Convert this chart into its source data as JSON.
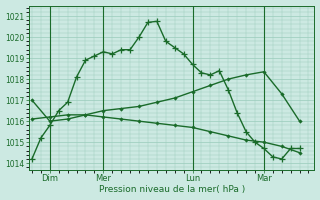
{
  "title": "Pression niveau de la mer( hPa )",
  "bg_color": "#cce9e2",
  "grid_color": "#99ccbb",
  "line_color": "#1a6b2a",
  "ylim": [
    1013.7,
    1021.5
  ],
  "yticks": [
    1014,
    1015,
    1016,
    1017,
    1018,
    1019,
    1020,
    1021
  ],
  "day_labels": [
    "Dim",
    "Mer",
    "Lun",
    "Mar"
  ],
  "day_positions": [
    6,
    24,
    54,
    78
  ],
  "xlim": [
    -1,
    95
  ],
  "series1_x": [
    0,
    3,
    6,
    9,
    12,
    15,
    18,
    21,
    24,
    27,
    30,
    33,
    36,
    39,
    42,
    45,
    48,
    51,
    54,
    57,
    60,
    63,
    66,
    69,
    72,
    75,
    78,
    81,
    84,
    87,
    90
  ],
  "series1_y": [
    1014.2,
    1015.2,
    1015.8,
    1016.5,
    1016.9,
    1018.1,
    1018.9,
    1019.1,
    1019.3,
    1019.2,
    1019.4,
    1019.4,
    1020.0,
    1020.7,
    1020.75,
    1019.8,
    1019.5,
    1019.2,
    1018.7,
    1018.3,
    1018.2,
    1018.4,
    1017.5,
    1016.4,
    1015.5,
    1015.0,
    1014.7,
    1014.3,
    1014.2,
    1014.7,
    1014.7
  ],
  "series2_x": [
    0,
    6,
    12,
    18,
    24,
    30,
    36,
    42,
    48,
    54,
    60,
    66,
    72,
    78,
    84,
    90
  ],
  "series2_y": [
    1017.0,
    1016.0,
    1016.1,
    1016.3,
    1016.5,
    1016.6,
    1016.7,
    1016.9,
    1017.1,
    1017.4,
    1017.7,
    1018.0,
    1018.2,
    1018.35,
    1017.3,
    1016.0
  ],
  "series3_x": [
    0,
    6,
    12,
    18,
    24,
    30,
    36,
    42,
    48,
    54,
    60,
    66,
    72,
    78,
    84,
    90
  ],
  "series3_y": [
    1016.1,
    1016.2,
    1016.3,
    1016.3,
    1016.2,
    1016.1,
    1016.0,
    1015.9,
    1015.8,
    1015.7,
    1015.5,
    1015.3,
    1015.1,
    1015.0,
    1014.8,
    1014.5
  ]
}
